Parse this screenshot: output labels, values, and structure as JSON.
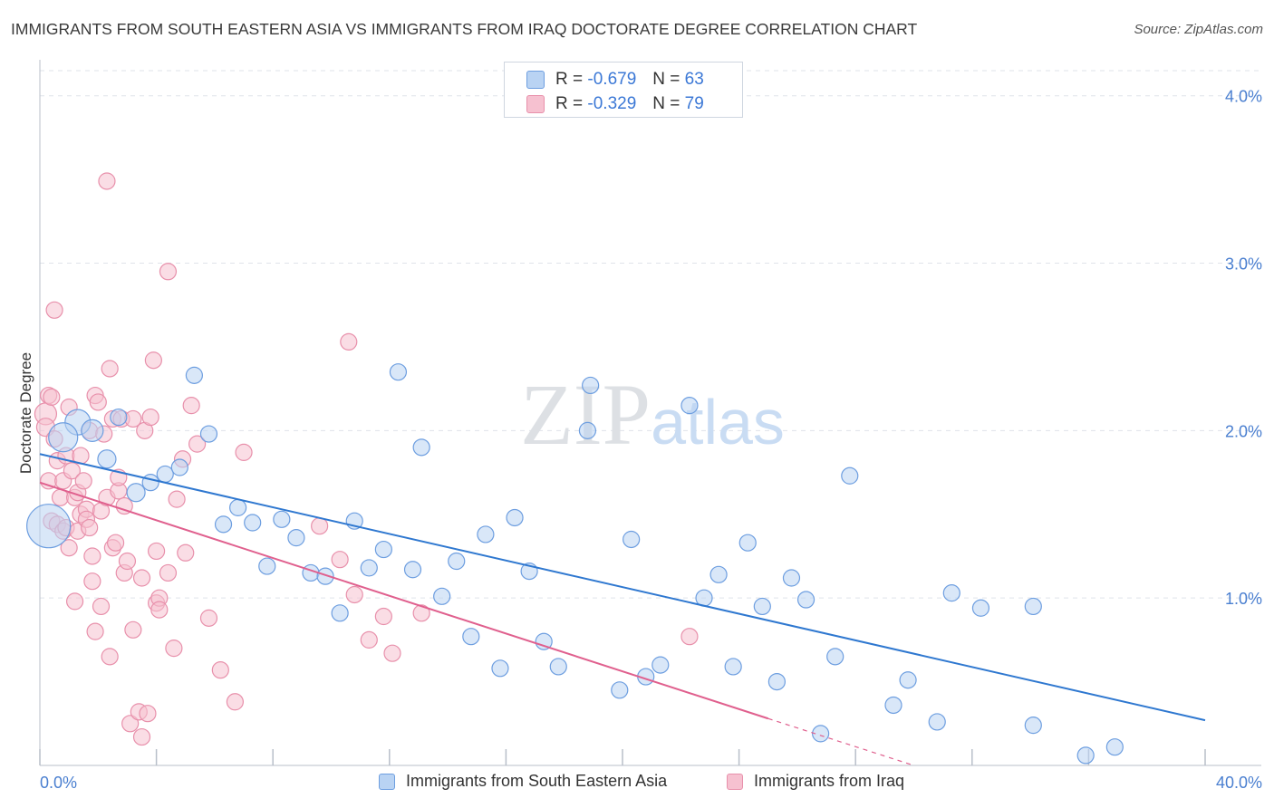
{
  "title": "IMMIGRANTS FROM SOUTH EASTERN ASIA VS IMMIGRANTS FROM IRAQ DOCTORATE DEGREE CORRELATION CHART",
  "source": "Source: ZipAtlas.com",
  "watermark": "ZIPatlas",
  "stats": [
    {
      "r_label": "R =",
      "r_value": "-0.679",
      "n_label": "N =",
      "n_value": "63"
    },
    {
      "r_label": "R =",
      "r_value": "-0.329",
      "n_label": "N =",
      "n_value": "79"
    }
  ],
  "colors": {
    "blue_fill": "#b9d3f3",
    "blue_stroke": "#6d9ee0",
    "blue_line": "#2f78d0",
    "pink_fill": "#f6c1d0",
    "pink_stroke": "#e890ab",
    "pink_line": "#e0608e",
    "tick_label": "#4a7fd0",
    "grid": "#dfe3ea"
  },
  "chart_data": {
    "type": "scatter",
    "ylabel": "Doctorate Degree",
    "xlim": [
      0,
      40
    ],
    "ylim": [
      0,
      4.15
    ],
    "x_tick_labels": [
      {
        "x": 0,
        "label": "0.0%"
      },
      {
        "x": 40,
        "label": "40.0%"
      }
    ],
    "y_ticks": [
      1,
      2,
      3,
      4
    ],
    "y_tick_labels": [
      "1.0%",
      "2.0%",
      "3.0%",
      "4.0%"
    ],
    "grid": true,
    "legend_position": "bottom",
    "series": [
      {
        "name": "Immigrants from South Eastern Asia",
        "color": "blue",
        "trend": {
          "x1": 0,
          "y1": 1.86,
          "x2": 40,
          "y2": 0.27
        },
        "points": [
          [
            0.3,
            1.43,
            24
          ],
          [
            1.3,
            2.05,
            14
          ],
          [
            0.8,
            1.96,
            16
          ],
          [
            1.8,
            2.0,
            12
          ],
          [
            2.3,
            1.83,
            10
          ],
          [
            2.7,
            2.08,
            9
          ],
          [
            3.3,
            1.63,
            10
          ],
          [
            3.8,
            1.69,
            9
          ],
          [
            4.3,
            1.74,
            9
          ],
          [
            4.8,
            1.78,
            9
          ],
          [
            5.3,
            2.33,
            9
          ],
          [
            5.8,
            1.98,
            9
          ],
          [
            6.3,
            1.44,
            9
          ],
          [
            6.8,
            1.54,
            9
          ],
          [
            7.3,
            1.45,
            9
          ],
          [
            7.8,
            1.19,
            9
          ],
          [
            8.3,
            1.47,
            9
          ],
          [
            8.8,
            1.36,
            9
          ],
          [
            9.3,
            1.15,
            9
          ],
          [
            9.8,
            1.13,
            9
          ],
          [
            10.3,
            0.91,
            9
          ],
          [
            10.8,
            1.46,
            9
          ],
          [
            11.3,
            1.18,
            9
          ],
          [
            11.8,
            1.29,
            9
          ],
          [
            12.3,
            2.35,
            9
          ],
          [
            12.8,
            1.17,
            9
          ],
          [
            13.1,
            1.9,
            9
          ],
          [
            13.8,
            1.01,
            9
          ],
          [
            14.3,
            1.22,
            9
          ],
          [
            14.8,
            0.77,
            9
          ],
          [
            15.3,
            1.38,
            9
          ],
          [
            15.8,
            0.58,
            9
          ],
          [
            16.3,
            1.48,
            9
          ],
          [
            16.8,
            1.16,
            9
          ],
          [
            17.3,
            0.74,
            9
          ],
          [
            17.8,
            0.59,
            9
          ],
          [
            18.8,
            2.0,
            9
          ],
          [
            18.9,
            2.27,
            9
          ],
          [
            19.9,
            0.45,
            9
          ],
          [
            20.3,
            1.35,
            9
          ],
          [
            20.8,
            0.53,
            9
          ],
          [
            21.3,
            0.6,
            9
          ],
          [
            22.3,
            2.15,
            9
          ],
          [
            22.8,
            1.0,
            9
          ],
          [
            23.3,
            1.14,
            9
          ],
          [
            23.8,
            0.59,
            9
          ],
          [
            24.3,
            1.33,
            9
          ],
          [
            24.8,
            0.95,
            9
          ],
          [
            25.3,
            0.5,
            9
          ],
          [
            25.8,
            1.12,
            9
          ],
          [
            26.3,
            0.99,
            9
          ],
          [
            26.8,
            0.19,
            9
          ],
          [
            27.3,
            0.65,
            9
          ],
          [
            27.8,
            1.73,
            9
          ],
          [
            29.3,
            0.36,
            9
          ],
          [
            29.8,
            0.51,
            9
          ],
          [
            30.8,
            0.26,
            9
          ],
          [
            31.3,
            1.03,
            9
          ],
          [
            32.3,
            0.94,
            9
          ],
          [
            34.1,
            0.24,
            9
          ],
          [
            34.1,
            0.95,
            9
          ],
          [
            35.9,
            0.06,
            9
          ],
          [
            36.9,
            0.11,
            9
          ]
        ]
      },
      {
        "name": "Immigrants from Iraq",
        "color": "pink",
        "trend": {
          "x1": 0,
          "y1": 1.69,
          "x2": 25,
          "y2": 0.28
        },
        "trend_dash": {
          "x1": 25,
          "y1": 0.28,
          "x2": 30,
          "y2": 0.0
        },
        "points": [
          [
            0.2,
            2.1,
            12
          ],
          [
            0.2,
            2.02,
            10
          ],
          [
            0.3,
            2.21,
            9
          ],
          [
            0.3,
            1.7,
            9
          ],
          [
            0.4,
            2.2,
            9
          ],
          [
            0.4,
            1.46,
            9
          ],
          [
            0.5,
            2.72,
            9
          ],
          [
            0.5,
            1.95,
            9
          ],
          [
            0.6,
            1.44,
            9
          ],
          [
            0.6,
            1.82,
            9
          ],
          [
            0.7,
            1.6,
            9
          ],
          [
            0.8,
            1.7,
            9
          ],
          [
            0.8,
            1.4,
            9
          ],
          [
            0.9,
            1.85,
            9
          ],
          [
            0.9,
            1.42,
            9
          ],
          [
            1.0,
            1.3,
            9
          ],
          [
            1.0,
            2.14,
            9
          ],
          [
            1.1,
            1.76,
            9
          ],
          [
            1.2,
            1.6,
            9
          ],
          [
            1.2,
            0.98,
            9
          ],
          [
            1.3,
            1.4,
            9
          ],
          [
            1.3,
            1.63,
            9
          ],
          [
            1.4,
            1.85,
            9
          ],
          [
            1.4,
            1.5,
            9
          ],
          [
            1.5,
            1.7,
            9
          ],
          [
            1.6,
            1.53,
            9
          ],
          [
            1.6,
            1.47,
            9
          ],
          [
            1.7,
            1.42,
            9
          ],
          [
            1.7,
            2.0,
            9
          ],
          [
            1.8,
            1.1,
            9
          ],
          [
            1.8,
            1.25,
            9
          ],
          [
            1.9,
            0.8,
            9
          ],
          [
            1.9,
            2.21,
            9
          ],
          [
            2.0,
            2.17,
            9
          ],
          [
            2.1,
            0.95,
            9
          ],
          [
            2.1,
            1.52,
            9
          ],
          [
            2.2,
            1.98,
            9
          ],
          [
            2.3,
            1.6,
            9
          ],
          [
            2.3,
            3.49,
            9
          ],
          [
            2.4,
            0.65,
            9
          ],
          [
            2.4,
            2.37,
            9
          ],
          [
            2.5,
            1.3,
            9
          ],
          [
            2.5,
            2.07,
            9
          ],
          [
            2.6,
            1.33,
            9
          ],
          [
            2.7,
            1.64,
            9
          ],
          [
            2.7,
            1.72,
            9
          ],
          [
            2.8,
            2.07,
            9
          ],
          [
            2.9,
            1.15,
            9
          ],
          [
            2.9,
            1.55,
            9
          ],
          [
            3.0,
            1.22,
            9
          ],
          [
            3.1,
            0.25,
            9
          ],
          [
            3.2,
            0.81,
            9
          ],
          [
            3.2,
            2.07,
            9
          ],
          [
            3.4,
            0.32,
            9
          ],
          [
            3.5,
            0.17,
            9
          ],
          [
            3.5,
            1.12,
            9
          ],
          [
            3.6,
            2.0,
            9
          ],
          [
            3.7,
            0.31,
            9
          ],
          [
            3.8,
            2.08,
            9
          ],
          [
            3.9,
            2.42,
            9
          ],
          [
            4.0,
            1.28,
            9
          ],
          [
            4.0,
            0.97,
            9
          ],
          [
            4.1,
            1.0,
            9
          ],
          [
            4.1,
            0.93,
            9
          ],
          [
            4.4,
            1.15,
            9
          ],
          [
            4.4,
            2.95,
            9
          ],
          [
            4.6,
            0.7,
            9
          ],
          [
            4.7,
            1.59,
            9
          ],
          [
            4.9,
            1.83,
            9
          ],
          [
            5.0,
            1.27,
            9
          ],
          [
            5.2,
            2.15,
            9
          ],
          [
            5.4,
            1.92,
            9
          ],
          [
            5.8,
            0.88,
            9
          ],
          [
            6.2,
            0.57,
            9
          ],
          [
            6.7,
            0.38,
            9
          ],
          [
            7.0,
            1.87,
            9
          ],
          [
            9.6,
            1.43,
            9
          ],
          [
            10.3,
            1.23,
            9
          ],
          [
            10.6,
            2.53,
            9
          ]
        ],
        "extra_points": [
          [
            10.8,
            1.02,
            9
          ],
          [
            11.3,
            0.75,
            9
          ],
          [
            11.8,
            0.89,
            9
          ],
          [
            12.1,
            0.67,
            9
          ],
          [
            13.1,
            0.91,
            9
          ],
          [
            22.3,
            0.77,
            9
          ]
        ]
      }
    ]
  },
  "legend": {
    "items": [
      {
        "label": "Immigrants from South Eastern Asia"
      },
      {
        "label": "Immigrants from Iraq"
      }
    ]
  }
}
